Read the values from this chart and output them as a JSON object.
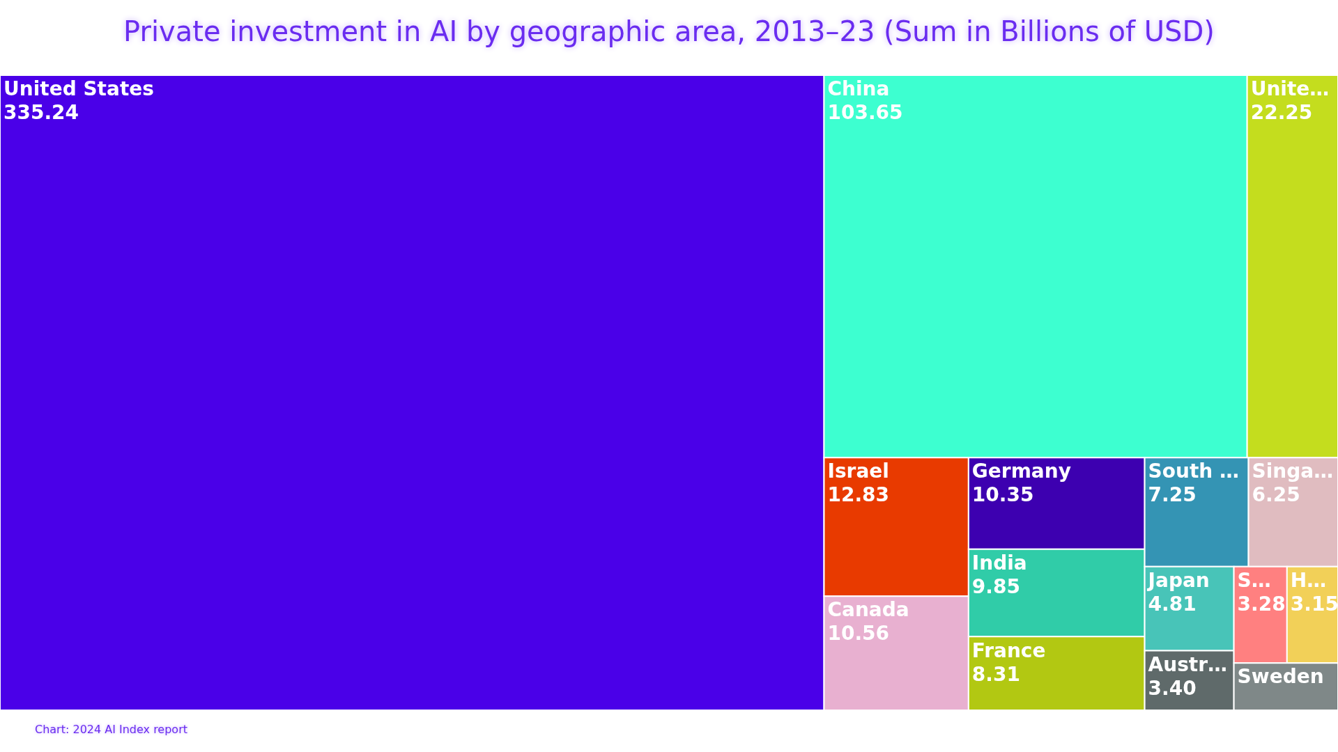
{
  "chart_data": {
    "type": "other",
    "title": "Private investment in AI by geographic area, 2013–23 (Sum in Billions of USD)",
    "categories": [
      "United States",
      "China",
      "Unite…",
      "Israel",
      "Canada",
      "Germany",
      "India",
      "France",
      "South …",
      "Singa…",
      "Japan",
      "Austr…",
      "S…",
      "H…",
      "Sweden"
    ],
    "values": [
      335.24,
      103.65,
      22.25,
      12.83,
      10.56,
      10.35,
      9.85,
      8.31,
      7.25,
      6.25,
      4.81,
      3.4,
      3.28,
      3.15,
      null
    ],
    "value_labels": [
      "335.24",
      "103.65",
      "22.25",
      "12.83",
      "10.56",
      "10.35",
      "9.85",
      "8.31",
      "7.25",
      "6.25",
      "4.81",
      "3.40",
      "3.28",
      "3.15",
      null
    ],
    "colors": [
      "#4a00e8",
      "#3dffd0",
      "#c4dd1e",
      "#e83a00",
      "#e8b0d0",
      "#3d00b0",
      "#30cca8",
      "#b2c812",
      "#3494b4",
      "#e0bcc0",
      "#48c4b8",
      "#5f6a6a",
      "#ff8080",
      "#f2d058",
      "#7f8888"
    ],
    "annotations": [
      "Chart: 2024 AI Index report"
    ]
  }
}
